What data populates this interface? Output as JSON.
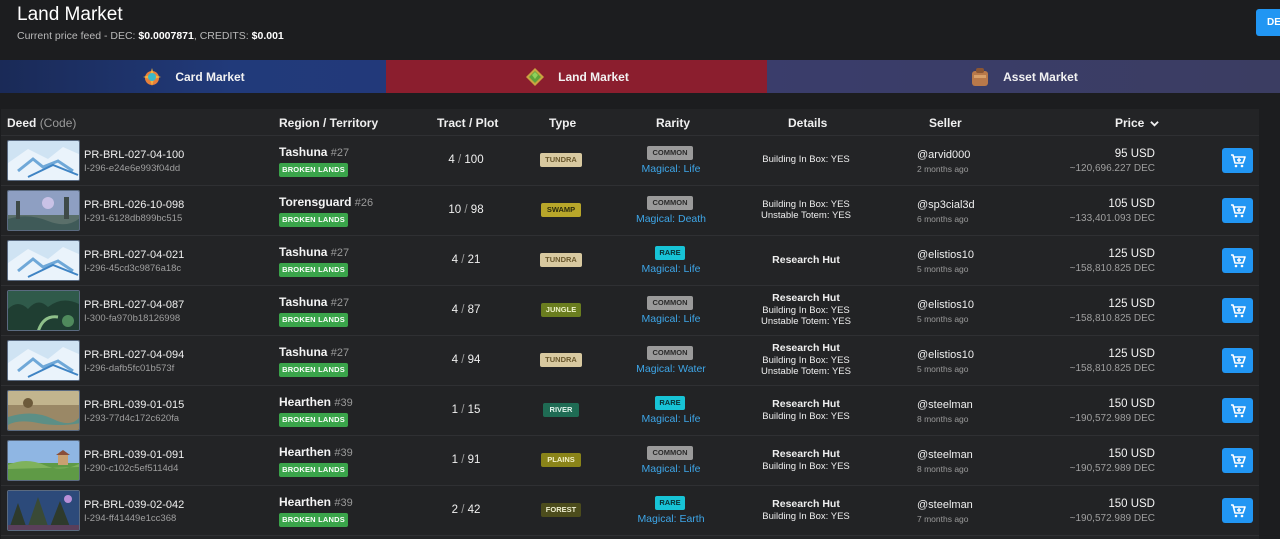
{
  "header": {
    "title": "Land Market",
    "price_feed_label": "Current price feed - DEC: ",
    "dec_price": "$0.0007871",
    "credits_label": ", CREDITS: ",
    "credits_price": "$0.001",
    "dec_button": "DEC"
  },
  "tabs": [
    {
      "label": "Card Market",
      "icon": "card-market-icon"
    },
    {
      "label": "Land Market",
      "icon": "land-market-icon",
      "active": true
    },
    {
      "label": "Asset Market",
      "icon": "asset-market-icon"
    }
  ],
  "table": {
    "headers": {
      "deed": "Deed",
      "deed_code": "(Code)",
      "region": "Region / Territory",
      "tract": "Tract / Plot",
      "type": "Type",
      "rarity": "Rarity",
      "details": "Details",
      "seller": "Seller",
      "price": "Price"
    },
    "rows": [
      {
        "code": "PR-BRL-027-04-100",
        "id": "I-296-e24e6e993f04dd",
        "region": "Tashuna",
        "territory": "#27",
        "badge": "BROKEN LANDS",
        "tract": "4",
        "plot": "100",
        "type": "TUNDRA",
        "rarity": "COMMON",
        "magic": "Magical: Life",
        "details_title": "",
        "details": [
          "Building In Box: YES"
        ],
        "seller": "@arvid000",
        "time": "2 months ago",
        "price": "95 USD",
        "price_dec": "~120,696.227 DEC",
        "thumb": "tundra"
      },
      {
        "code": "PR-BRL-026-10-098",
        "id": "I-291-6128db899bc515",
        "region": "Torensguard",
        "territory": "#26",
        "badge": "BROKEN LANDS",
        "tract": "10",
        "plot": "98",
        "type": "SWAMP",
        "rarity": "COMMON",
        "magic": "Magical: Death",
        "details_title": "",
        "details": [
          "Building In Box: YES",
          "Unstable Totem: YES"
        ],
        "seller": "@sp3cial3d",
        "time": "6 months ago",
        "price": "105 USD",
        "price_dec": "~133,401.093 DEC",
        "thumb": "swamp"
      },
      {
        "code": "PR-BRL-027-04-021",
        "id": "I-296-45cd3c9876a18c",
        "region": "Tashuna",
        "territory": "#27",
        "badge": "BROKEN LANDS",
        "tract": "4",
        "plot": "21",
        "type": "TUNDRA",
        "rarity": "RARE",
        "magic": "Magical: Life",
        "details_title": "Research Hut",
        "details": [],
        "seller": "@elistios10",
        "time": "5 months ago",
        "price": "125 USD",
        "price_dec": "~158,810.825 DEC",
        "thumb": "tundra"
      },
      {
        "code": "PR-BRL-027-04-087",
        "id": "I-300-fa970b18126998",
        "region": "Tashuna",
        "territory": "#27",
        "badge": "BROKEN LANDS",
        "tract": "4",
        "plot": "87",
        "type": "JUNGLE",
        "rarity": "COMMON",
        "magic": "Magical: Life",
        "details_title": "Research Hut",
        "details": [
          "Building In Box: YES",
          "Unstable Totem: YES"
        ],
        "seller": "@elistios10",
        "time": "5 months ago",
        "price": "125 USD",
        "price_dec": "~158,810.825 DEC",
        "thumb": "jungle"
      },
      {
        "code": "PR-BRL-027-04-094",
        "id": "I-296-dafb5fc01b573f",
        "region": "Tashuna",
        "territory": "#27",
        "badge": "BROKEN LANDS",
        "tract": "4",
        "plot": "94",
        "type": "TUNDRA",
        "rarity": "COMMON",
        "magic": "Magical: Water",
        "details_title": "Research Hut",
        "details": [
          "Building In Box: YES",
          "Unstable Totem: YES"
        ],
        "seller": "@elistios10",
        "time": "5 months ago",
        "price": "125 USD",
        "price_dec": "~158,810.825 DEC",
        "thumb": "tundra"
      },
      {
        "code": "PR-BRL-039-01-015",
        "id": "I-293-77d4c172c620fa",
        "region": "Hearthen",
        "territory": "#39",
        "badge": "BROKEN LANDS",
        "tract": "1",
        "plot": "15",
        "type": "RIVER",
        "rarity": "RARE",
        "magic": "Magical: Life",
        "details_title": "Research Hut",
        "details": [
          "Building In Box: YES"
        ],
        "seller": "@steelman",
        "time": "8 months ago",
        "price": "150 USD",
        "price_dec": "~190,572.989 DEC",
        "thumb": "river"
      },
      {
        "code": "PR-BRL-039-01-091",
        "id": "I-290-c102c5ef5114d4",
        "region": "Hearthen",
        "territory": "#39",
        "badge": "BROKEN LANDS",
        "tract": "1",
        "plot": "91",
        "type": "PLAINS",
        "rarity": "COMMON",
        "magic": "Magical: Life",
        "details_title": "Research Hut",
        "details": [
          "Building In Box: YES"
        ],
        "seller": "@steelman",
        "time": "8 months ago",
        "price": "150 USD",
        "price_dec": "~190,572.989 DEC",
        "thumb": "plains"
      },
      {
        "code": "PR-BRL-039-02-042",
        "id": "I-294-ff41449e1cc368",
        "region": "Hearthen",
        "territory": "#39",
        "badge": "BROKEN LANDS",
        "tract": "2",
        "plot": "42",
        "type": "FOREST",
        "rarity": "RARE",
        "magic": "Magical: Earth",
        "details_title": "Research Hut",
        "details": [
          "Building In Box: YES"
        ],
        "seller": "@steelman",
        "time": "7 months ago",
        "price": "150 USD",
        "price_dec": "~190,572.989 DEC",
        "thumb": "forest"
      }
    ]
  },
  "colors": {
    "accent": "#2196f3",
    "broken_lands": "#3aa44a",
    "magic_text": "#3ea6e8",
    "tundra": "#d8c9a0",
    "swamp": "#b8a62a",
    "jungle": "#6a7d1f",
    "river": "#1f6b54",
    "plains": "#8a8419",
    "forest": "#4c4c1c",
    "common": "#9a9a9a",
    "rare": "#17c3d6"
  }
}
